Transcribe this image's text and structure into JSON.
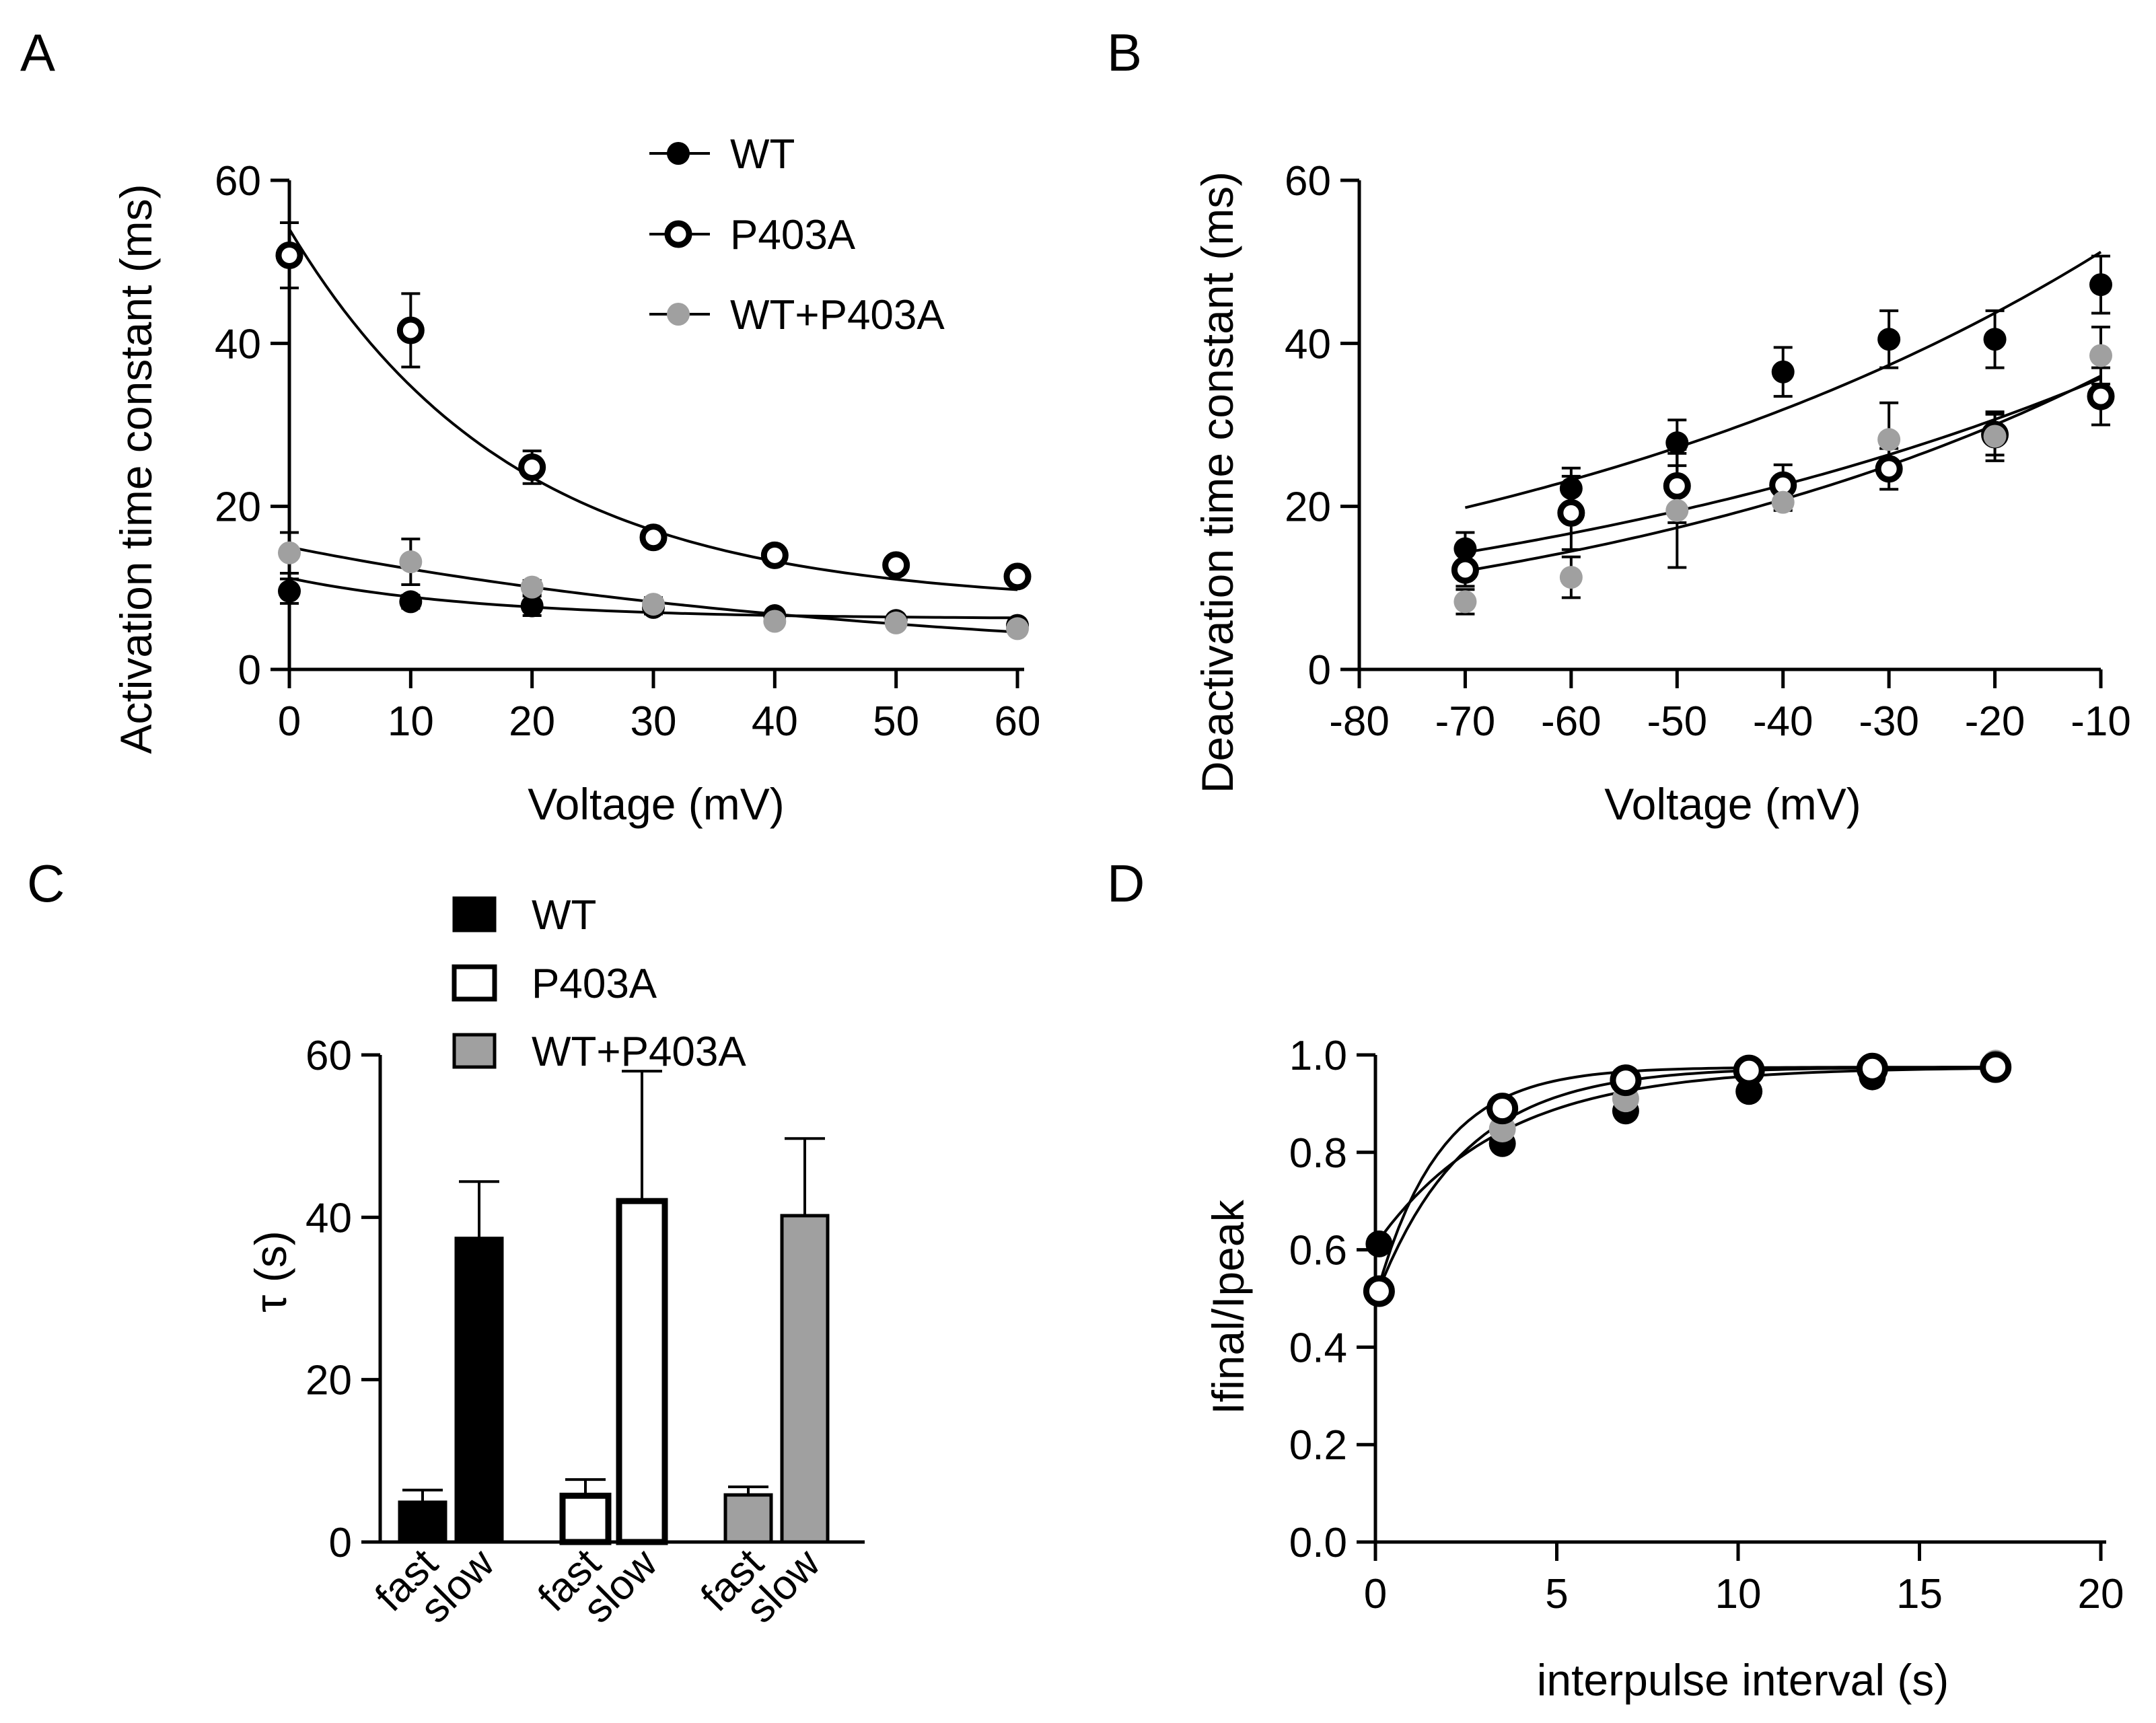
{
  "chart_data": [
    {
      "id": "A",
      "panel_label": "A",
      "type": "scatter",
      "xlabel": "Voltage (mV)",
      "ylabel": "Activation time constant (ms)",
      "xlim": [
        0,
        60
      ],
      "ylim": [
        0,
        60
      ],
      "xticks": [
        0,
        10,
        20,
        30,
        40,
        50,
        60
      ],
      "yticks": [
        0,
        20,
        40,
        60
      ],
      "legend_position": "top-right",
      "series": [
        {
          "name": "WT",
          "marker": "filled-black",
          "x": [
            0,
            10,
            20,
            30,
            40,
            50,
            60
          ],
          "y": [
            9.6,
            8.3,
            7.8,
            7.6,
            6.6,
            6.0,
            5.4
          ],
          "err": [
            1.5,
            0.8,
            1.2,
            0.8,
            0.6,
            0.5,
            0.4
          ],
          "fit": {
            "y0": 11.2,
            "plateau": 6.2,
            "k": 0.062
          }
        },
        {
          "name": "P403A",
          "marker": "open",
          "x": [
            0,
            10,
            20,
            30,
            40,
            50,
            60
          ],
          "y": [
            50.8,
            41.6,
            24.8,
            16.2,
            14.0,
            12.8,
            11.4
          ],
          "err": [
            4.0,
            4.5,
            2.0,
            1.0,
            1.0,
            0.8,
            1.0
          ],
          "fit": {
            "y0": 54.0,
            "plateau": 8.0,
            "k": 0.0542
          }
        },
        {
          "name": "WT+P403A",
          "marker": "filled-gray",
          "x": [
            0,
            10,
            20,
            30,
            40,
            50,
            60
          ],
          "y": [
            14.3,
            13.2,
            10.1,
            8.0,
            5.9,
            5.7,
            5.0
          ],
          "err": [
            2.5,
            2.8,
            0.8,
            0.8,
            0.5,
            0.4,
            0.4
          ],
          "fit": {
            "y0": 15.0,
            "plateau": 0.0,
            "k": 0.0198
          }
        }
      ]
    },
    {
      "id": "B",
      "panel_label": "B",
      "type": "scatter",
      "xlabel": "Voltage (mV)",
      "ylabel": "Deactivation time constant (ms)",
      "xlim": [
        -80,
        -10
      ],
      "ylim": [
        0,
        60
      ],
      "xticks": [
        -80,
        -70,
        -60,
        -50,
        -40,
        -30,
        -20,
        -10
      ],
      "yticks": [
        0,
        20,
        40,
        60
      ],
      "series": [
        {
          "name": "WT",
          "marker": "filled-black",
          "x": [
            -70,
            -60,
            -50,
            -40,
            -30,
            -20,
            -10
          ],
          "y": [
            14.8,
            22.2,
            27.8,
            36.5,
            40.5,
            40.5,
            47.2
          ],
          "err": [
            2.0,
            2.5,
            2.8,
            3.0,
            3.5,
            3.5,
            3.5
          ],
          "fit": {
            "a": 51.2,
            "k": 0.0158
          }
        },
        {
          "name": "P403A",
          "marker": "open",
          "x": [
            -70,
            -60,
            -50,
            -40,
            -30,
            -20,
            -10
          ],
          "y": [
            12.2,
            19.2,
            22.5,
            22.6,
            24.6,
            28.8,
            33.5
          ],
          "err": [
            2.0,
            4.5,
            4.5,
            2.5,
            2.5,
            2.5,
            3.5
          ],
          "fit": {
            "a": 35.7,
            "k": 0.0152
          }
        },
        {
          "name": "WT+P403A",
          "marker": "filled-gray",
          "x": [
            -70,
            -60,
            -50,
            -40,
            -30,
            -20,
            -10
          ],
          "y": [
            8.3,
            11.3,
            19.5,
            20.5,
            28.2,
            28.6,
            38.5
          ],
          "err": [
            1.5,
            2.5,
            7.0,
            1.0,
            4.5,
            3.0,
            3.5
          ],
          "fit": {
            "a": 36.0,
            "k": 0.0182
          }
        }
      ]
    },
    {
      "id": "C",
      "panel_label": "C",
      "type": "bar",
      "ylabel": "τ (s)",
      "ylim": [
        0,
        60
      ],
      "yticks": [
        0,
        20,
        40,
        60
      ],
      "legend_position": "top",
      "categories": [
        "fast",
        "slow",
        "fast",
        "slow",
        "fast",
        "slow"
      ],
      "groups": [
        {
          "name": "WT",
          "fill": "#000000",
          "fast": 4.9,
          "fast_err": 1.5,
          "slow": 37.4,
          "slow_err": 7.0
        },
        {
          "name": "P403A",
          "fill": "#ffffff",
          "fast": 5.7,
          "fast_err": 2.0,
          "slow": 42.0,
          "slow_err": 16.0
        },
        {
          "name": "WT+P403A",
          "fill": "#a0a0a0",
          "fast": 5.8,
          "fast_err": 1.0,
          "slow": 40.2,
          "slow_err": 9.5
        }
      ]
    },
    {
      "id": "D",
      "panel_label": "D",
      "type": "scatter",
      "xlabel": "interpulse interval (s)",
      "ylabel": "Ifinal/Ipeak",
      "xlim": [
        0,
        20
      ],
      "ylim": [
        0,
        1.0
      ],
      "xticks": [
        0,
        5,
        10,
        15,
        20
      ],
      "yticks": [
        0.0,
        0.2,
        0.4,
        0.6,
        0.8,
        1.0
      ],
      "series": [
        {
          "name": "WT",
          "marker": "filled-black",
          "x": [
            0.1,
            3.5,
            6.9,
            10.3,
            13.7,
            17.1
          ],
          "y": [
            0.612,
            0.818,
            0.885,
            0.925,
            0.955,
            0.975
          ],
          "fit": {
            "y0": 0.61,
            "plateau": 0.975,
            "k": 0.29
          }
        },
        {
          "name": "P403A",
          "marker": "open",
          "x": [
            0.1,
            3.5,
            6.9,
            10.3,
            13.7,
            17.1
          ],
          "y": [
            0.515,
            0.89,
            0.948,
            0.968,
            0.972,
            0.975
          ],
          "fit": {
            "y0": 0.5,
            "plateau": 0.975,
            "k": 0.57
          }
        },
        {
          "name": "WT+P403A",
          "marker": "filled-gray",
          "x": [
            0.1,
            3.5,
            6.9,
            10.3,
            13.7,
            17.1
          ],
          "y": [
            0.515,
            0.848,
            0.91,
            0.965,
            0.975,
            0.983
          ],
          "fit": {
            "y0": 0.5,
            "plateau": 0.975,
            "k": 0.41
          }
        }
      ]
    }
  ],
  "colors": {
    "black": "#000000",
    "gray": "#a0a0a0",
    "white": "#ffffff"
  }
}
